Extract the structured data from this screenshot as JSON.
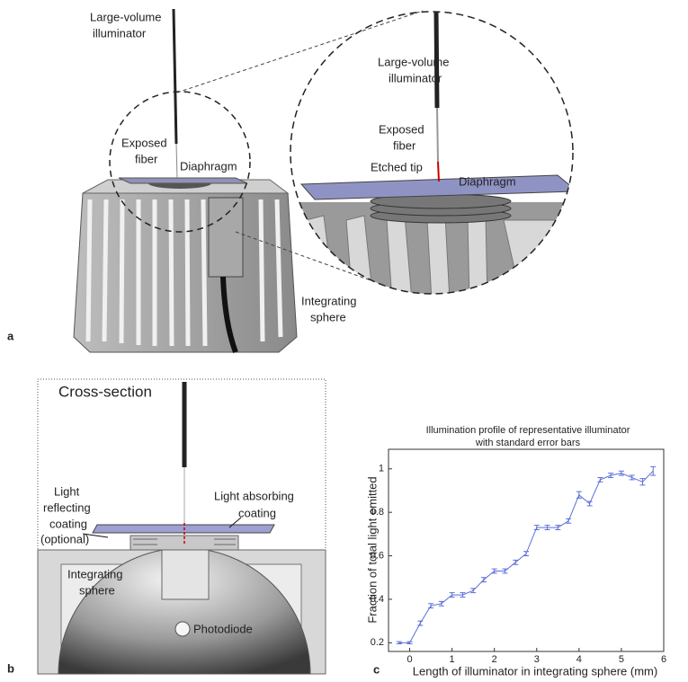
{
  "panel_a": {
    "letter": "a",
    "overview": {
      "illuminator": [
        "Large-volume",
        "illuminator"
      ],
      "fiber": [
        "Exposed",
        "fiber"
      ],
      "diaphragm": "Diaphragm",
      "sphere": [
        "Integrating",
        "sphere"
      ]
    },
    "inset": {
      "illuminator": [
        "Large-volume",
        "illuminator"
      ],
      "fiber": [
        "Exposed",
        "fiber"
      ],
      "tip": "Etched tip",
      "diaphragm": "Diaphragm"
    }
  },
  "panel_b": {
    "letter": "b",
    "title": "Cross-section",
    "reflecting": [
      "Light",
      "reflecting",
      "coating",
      "(optional)"
    ],
    "absorbing": [
      "Light absorbing",
      "coating"
    ],
    "sphere": [
      "Integrating",
      "sphere"
    ],
    "photodiode": "Photodiode"
  },
  "panel_c": {
    "letter": "c"
  },
  "chart_data": {
    "type": "line",
    "title": [
      "Illumination profile of representative illuminator",
      "with standard error bars"
    ],
    "xlabel": "Length of illuminator in integrating sphere (mm)",
    "ylabel": "Fraction of total light emitted",
    "x": [
      -0.25,
      0,
      0.25,
      0.5,
      0.75,
      1.0,
      1.25,
      1.5,
      1.75,
      2.0,
      2.25,
      2.5,
      2.75,
      3.0,
      3.25,
      3.5,
      3.75,
      4.0,
      4.25,
      4.5,
      4.75,
      5.0,
      5.25,
      5.5,
      5.75
    ],
    "values": [
      0.2,
      0.2,
      0.29,
      0.37,
      0.38,
      0.42,
      0.42,
      0.44,
      0.49,
      0.53,
      0.53,
      0.57,
      0.61,
      0.73,
      0.73,
      0.73,
      0.76,
      0.88,
      0.84,
      0.95,
      0.97,
      0.98,
      0.96,
      0.94,
      0.99
    ],
    "errors": [
      0.005,
      0.005,
      0.01,
      0.01,
      0.01,
      0.01,
      0.01,
      0.01,
      0.01,
      0.01,
      0.01,
      0.01,
      0.01,
      0.01,
      0.01,
      0.01,
      0.01,
      0.015,
      0.01,
      0.01,
      0.01,
      0.01,
      0.01,
      0.015,
      0.02
    ],
    "color": "#5b6fd8",
    "xlim": [
      -0.5,
      6
    ],
    "xticks": [
      0,
      1,
      2,
      3,
      4,
      5,
      6
    ],
    "ylim": [
      0.16,
      1.09
    ],
    "yticks": [
      0.2,
      0.4,
      0.6,
      0.8,
      1
    ]
  }
}
